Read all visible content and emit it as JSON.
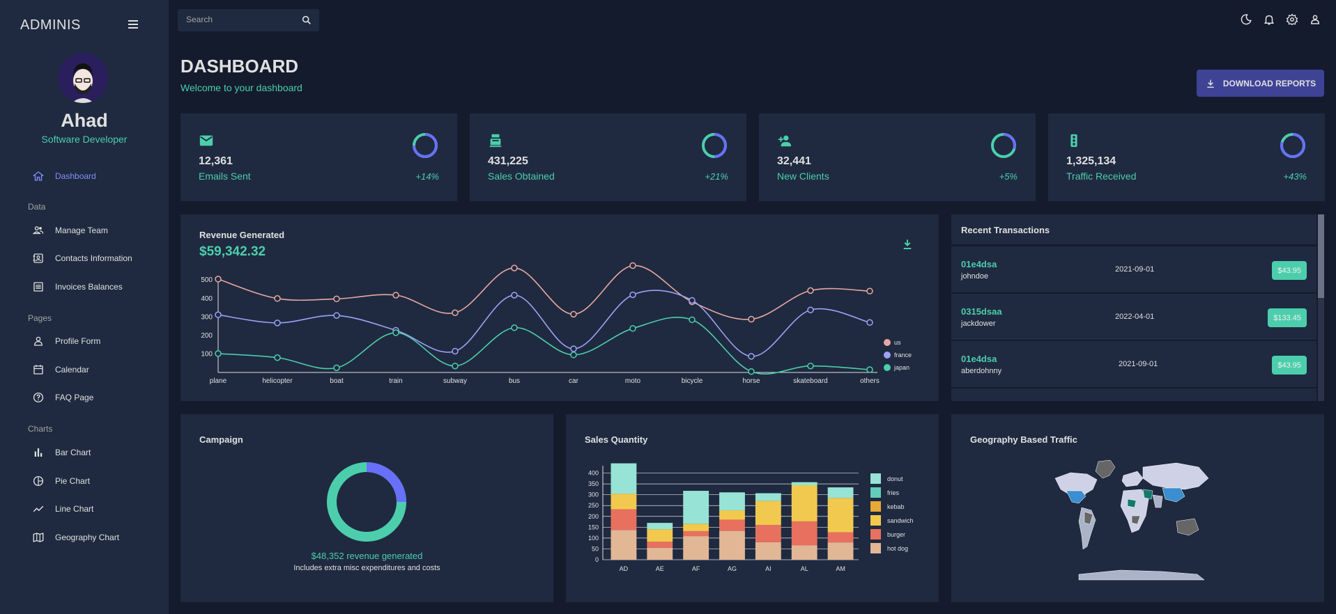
{
  "sidebar": {
    "brand": "ADMINIS",
    "user_name": "Ahad",
    "user_role": "Software Developer",
    "items": [
      {
        "label": "Dashboard",
        "icon": "home-icon",
        "active": true
      },
      {
        "label": "Manage Team",
        "icon": "team-icon"
      },
      {
        "label": "Contacts Information",
        "icon": "contacts-icon"
      },
      {
        "label": "Invoices Balances",
        "icon": "invoices-icon"
      },
      {
        "label": "Profile Form",
        "icon": "person-icon"
      },
      {
        "label": "Calendar",
        "icon": "calendar-icon"
      },
      {
        "label": "FAQ Page",
        "icon": "help-icon"
      },
      {
        "label": "Bar Chart",
        "icon": "bar-chart-icon"
      },
      {
        "label": "Pie Chart",
        "icon": "pie-chart-icon"
      },
      {
        "label": "Line Chart",
        "icon": "line-chart-icon"
      },
      {
        "label": "Geography Chart",
        "icon": "map-icon"
      }
    ],
    "sections": [
      "Data",
      "Pages",
      "Charts"
    ]
  },
  "topbar": {
    "search_placeholder": "Search"
  },
  "header": {
    "title": "DASHBOARD",
    "subtitle": "Welcome to your dashboard",
    "download_label": "DOWNLOAD REPORTS"
  },
  "stats": [
    {
      "value": "12,361",
      "label": "Emails Sent",
      "increase": "+14%",
      "progress": 0.75,
      "icon": "email-icon"
    },
    {
      "value": "431,225",
      "label": "Sales Obtained",
      "increase": "+21%",
      "progress": 0.5,
      "icon": "point-of-sale-icon"
    },
    {
      "value": "32,441",
      "label": "New Clients",
      "increase": "+5%",
      "progress": 0.3,
      "icon": "person-add-icon"
    },
    {
      "value": "1,325,134",
      "label": "Traffic Received",
      "increase": "+43%",
      "progress": 0.8,
      "icon": "traffic-icon"
    }
  ],
  "revenue": {
    "title": "Revenue Generated",
    "value": "$59,342.32"
  },
  "transactions": {
    "title": "Recent Transactions",
    "rows": [
      {
        "id": "01e4dsa",
        "user": "johndoe",
        "date": "2021-09-01",
        "cost": "$43.95"
      },
      {
        "id": "0315dsaa",
        "user": "jackdower",
        "date": "2022-04-01",
        "cost": "$133.45"
      },
      {
        "id": "01e4dsa",
        "user": "aberdohnny",
        "date": "2021-09-01",
        "cost": "$43.95"
      }
    ]
  },
  "campaign": {
    "title": "Campaign",
    "revenue_text": "$48,352 revenue generated",
    "note": "Includes extra misc expenditures and costs",
    "progress": 0.75
  },
  "sales_title": "Sales Quantity",
  "geo_title": "Geography Based Traffic",
  "colors": {
    "accent": "#4cceac",
    "primary": "#1f2a40",
    "bg": "#141b2d",
    "blue": "#6870fa"
  },
  "chart_data": [
    {
      "type": "line",
      "title": "Revenue Generated",
      "categories": [
        "plane",
        "helicopter",
        "boat",
        "train",
        "subway",
        "bus",
        "car",
        "moto",
        "bicycle",
        "horse",
        "skateboard",
        "others"
      ],
      "yticks": [
        100,
        200,
        300,
        400,
        500
      ],
      "ylim": [
        0,
        580
      ],
      "series": [
        {
          "name": "us",
          "color": "#e8a8a0",
          "values": [
            505,
            400,
            398,
            418,
            323,
            565,
            315,
            578,
            382,
            288,
            443,
            440
          ]
        },
        {
          "name": "france",
          "color": "#9da2f5",
          "values": [
            312,
            268,
            308,
            228,
            115,
            418,
            128,
            420,
            390,
            87,
            338,
            270
          ]
        },
        {
          "name": "japan",
          "color": "#4cceac",
          "values": [
            102,
            80,
            25,
            215,
            35,
            242,
            95,
            238,
            285,
            5,
            35,
            15
          ]
        }
      ]
    },
    {
      "type": "bar",
      "title": "Sales Quantity",
      "stacked": true,
      "categories": [
        "AD",
        "AE",
        "AF",
        "AG",
        "AI",
        "AL",
        "AM"
      ],
      "ylim": [
        0,
        450
      ],
      "yticks": [
        0,
        50,
        100,
        150,
        200,
        250,
        300,
        350,
        400
      ],
      "series": [
        {
          "name": "hot dog",
          "color": "#e2b796",
          "values": [
            137,
            55,
            109,
            133,
            81,
            66,
            80
          ]
        },
        {
          "name": "burger",
          "color": "#e8705f",
          "values": [
            96,
            28,
            23,
            52,
            79,
            111,
            47
          ]
        },
        {
          "name": "sandwich",
          "color": "#f1c94f",
          "values": [
            72,
            58,
            34,
            43,
            112,
            167,
            158
          ]
        },
        {
          "name": "kebab",
          "color": "#e8a838",
          "values": [
            0,
            0,
            0,
            0,
            0,
            0,
            0
          ]
        },
        {
          "name": "fries",
          "color": "#61cdbb",
          "values": [
            0,
            0,
            0,
            0,
            0,
            0,
            0
          ]
        },
        {
          "name": "donut",
          "color": "#97e3d5",
          "values": [
            140,
            29,
            152,
            83,
            35,
            14,
            49
          ]
        }
      ]
    }
  ]
}
